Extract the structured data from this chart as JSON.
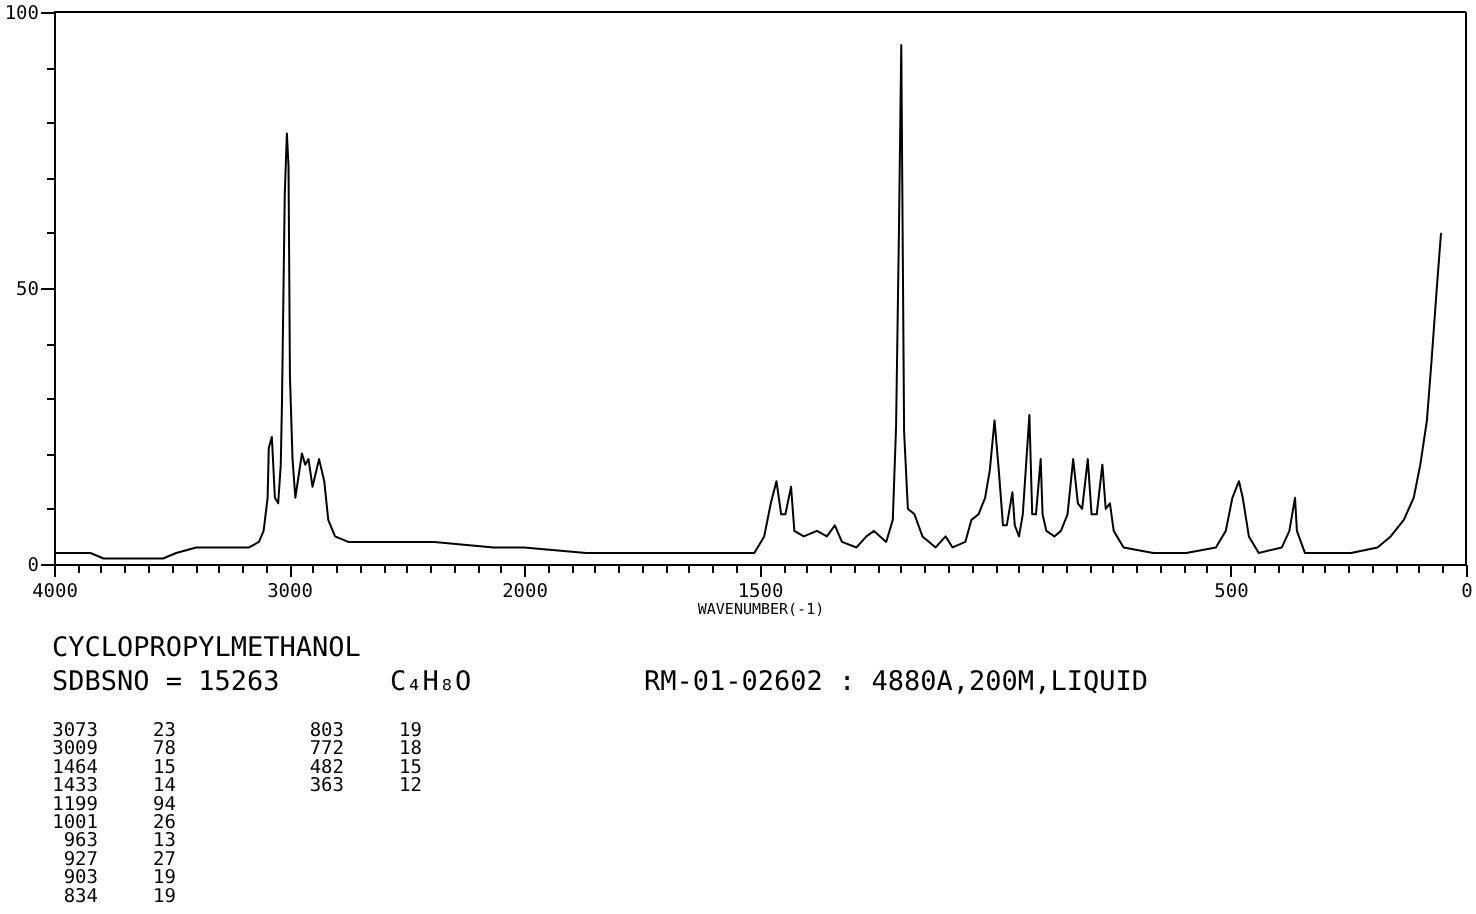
{
  "chart_data": [
    {
      "type": "line",
      "title": "CYCLOPROPYLMETHANOL",
      "color": "#000000",
      "x": [
        4000,
        3845,
        3789,
        3648,
        3536,
        3480,
        3395,
        3283,
        3170,
        3128,
        3108,
        3091,
        3086,
        3073,
        3060,
        3046,
        3035,
        3030,
        3018,
        3009,
        3002,
        2996,
        2985,
        2973,
        2945,
        2931,
        2917,
        2900,
        2872,
        2850,
        2833,
        2804,
        2748,
        2635,
        2382,
        2129,
        2000
      ],
      "values": [
        2,
        2,
        1,
        1,
        1,
        2,
        3,
        3,
        3,
        4,
        6,
        12,
        21,
        23,
        12,
        11,
        18,
        29,
        67,
        78,
        72,
        34,
        19,
        12,
        20,
        18,
        19,
        14,
        19,
        15,
        8,
        5,
        4,
        4,
        4,
        3,
        3
      ],
      "xlim": [
        4000,
        2000
      ],
      "xticks": [
        4000,
        {
          "value": 3900,
          "label": null
        },
        {
          "value": 3800,
          "label": null
        },
        {
          "value": 3700,
          "label": null
        },
        {
          "value": 3600,
          "label": null
        },
        {
          "value": 3500,
          "label": null
        },
        {
          "value": 3400,
          "label": null
        },
        {
          "value": 3300,
          "label": null
        },
        {
          "value": 3200,
          "label": null
        },
        {
          "value": 3100,
          "label": null
        },
        3000,
        {
          "value": 2900,
          "label": null
        },
        {
          "value": 2800,
          "label": null
        },
        {
          "value": 2700,
          "label": null
        },
        {
          "value": 2600,
          "label": null
        },
        {
          "value": 2500,
          "label": null
        },
        {
          "value": 2400,
          "label": null
        },
        {
          "value": 2300,
          "label": null
        },
        {
          "value": 2200,
          "label": null
        },
        {
          "value": 2100,
          "label": null
        },
        2000
      ],
      "ylim": [
        0,
        100
      ],
      "yticks": [
        0,
        {
          "value": 10,
          "label": null
        },
        {
          "value": 20,
          "label": null
        },
        {
          "value": 30,
          "label": null
        },
        {
          "value": 40,
          "label": null
        },
        50,
        {
          "value": 60,
          "label": null
        },
        {
          "value": 70,
          "label": null
        },
        {
          "value": 80,
          "label": null
        },
        {
          "value": 90,
          "label": null
        },
        100
      ],
      "annotations": [
        "SDBSNO = 15263",
        "C₄H₈O",
        "RM-01-02602 : 4880A,200M,LIQUID",
        "3073",
        "23",
        "3009",
        "78",
        "1464",
        "15",
        "1433",
        "14",
        "1199",
        "94",
        "1001",
        "26",
        "963",
        "13",
        "927",
        "27",
        "903",
        "19",
        "834",
        "19",
        "803",
        "19",
        "772",
        "18",
        "482",
        "15",
        "363",
        "12"
      ]
    },
    {
      "type": "line",
      "xlabel": "WAVENUMBER(-1)",
      "color": "#000000",
      "tick_labels": "x",
      "x": [
        2000,
        1868,
        1700,
        1560,
        1511,
        1490,
        1476,
        1464,
        1454,
        1445,
        1433,
        1426,
        1406,
        1378,
        1357,
        1340,
        1325,
        1294,
        1273,
        1257,
        1244,
        1231,
        1217,
        1210,
        1204,
        1199,
        1193,
        1185,
        1171,
        1154,
        1126,
        1105,
        1090,
        1063,
        1050,
        1035,
        1021,
        1011,
        1001,
        992,
        983,
        975,
        963,
        958,
        949,
        941,
        927,
        921,
        913,
        903,
        899,
        891,
        874,
        860,
        846,
        834,
        824,
        815,
        803,
        795,
        784,
        772,
        765,
        756,
        748,
        727,
        664,
        594,
        531,
        510,
        496,
        482,
        474,
        461,
        440,
        391,
        375,
        363,
        359,
        342,
        244,
        188,
        160,
        132,
        111,
        97,
        83,
        73,
        62,
        53
      ],
      "values": [
        3,
        2,
        2,
        2,
        2,
        5,
        11,
        15,
        9,
        9,
        14,
        6,
        5,
        6,
        5,
        7,
        4,
        3,
        5,
        6,
        5,
        4,
        8,
        25,
        60,
        94,
        24,
        10,
        9,
        5,
        3,
        5,
        3,
        4,
        8,
        9,
        12,
        17,
        26,
        17,
        7,
        7,
        13,
        7,
        5,
        9,
        27,
        9,
        9,
        19,
        9,
        6,
        5,
        6,
        9,
        19,
        11,
        10,
        19,
        9,
        9,
        18,
        10,
        11,
        6,
        3,
        2,
        2,
        3,
        6,
        12,
        15,
        12,
        5,
        2,
        3,
        6,
        12,
        6,
        2,
        2,
        3,
        5,
        8,
        12,
        18,
        26,
        37,
        50,
        60
      ],
      "xlim": [
        2000,
        0
      ],
      "xticks": [
        {
          "value": 1950,
          "label": null
        },
        {
          "value": 1900,
          "label": null
        },
        {
          "value": 1850,
          "label": null
        },
        {
          "value": 1800,
          "label": null
        },
        {
          "value": 1750,
          "label": null
        },
        {
          "value": 1700,
          "label": null
        },
        {
          "value": 1650,
          "label": null
        },
        {
          "value": 1600,
          "label": null
        },
        {
          "value": 1550,
          "label": null
        },
        1500,
        {
          "value": 1450,
          "label": null
        },
        {
          "value": 1400,
          "label": null
        },
        {
          "value": 1350,
          "label": null
        },
        {
          "value": 1300,
          "label": null
        },
        {
          "value": 1250,
          "label": null
        },
        {
          "value": 1200,
          "label": null
        },
        {
          "value": 1150,
          "label": null
        },
        {
          "value": 1100,
          "label": null
        },
        {
          "value": 1050,
          "label": null
        },
        {
          "value": 1000,
          "label": null
        },
        {
          "value": 950,
          "label": null
        },
        {
          "value": 900,
          "label": null
        },
        {
          "value": 850,
          "label": null
        },
        {
          "value": 800,
          "label": null
        },
        {
          "value": 750,
          "label": null
        },
        {
          "value": 700,
          "label": null
        },
        {
          "value": 650,
          "label": null
        },
        {
          "value": 600,
          "label": null
        },
        {
          "value": 550,
          "label": null
        },
        500,
        {
          "value": 450,
          "label": null
        },
        {
          "value": 400,
          "label": null
        },
        {
          "value": 350,
          "label": null
        },
        {
          "value": 300,
          "label": null
        },
        {
          "value": 250,
          "label": null
        },
        {
          "value": 200,
          "label": null
        },
        {
          "value": 150,
          "label": null
        },
        {
          "value": 100,
          "label": null
        },
        {
          "value": 50,
          "label": null
        },
        0
      ],
      "ylim": [
        0,
        100
      ]
    }
  ]
}
